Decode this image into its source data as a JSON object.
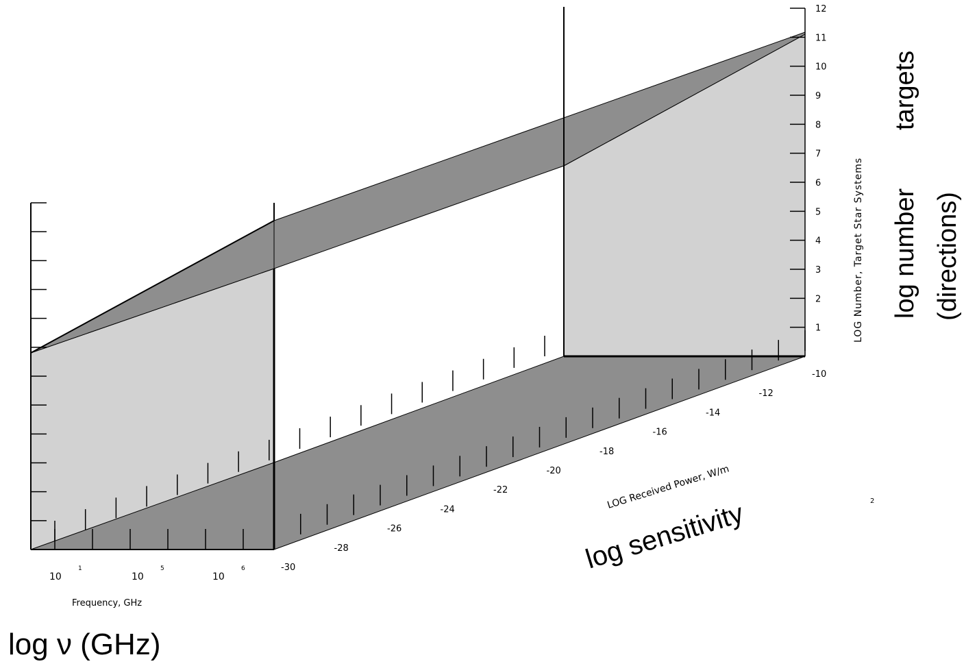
{
  "chart_data": {
    "type": "area",
    "projection": "3d-oblique",
    "title": "",
    "z_axis": {
      "label": "LOG Number, Target Star Systems",
      "ticks": [
        "1",
        "2",
        "3",
        "4",
        "5",
        "6",
        "7",
        "8",
        "9",
        "10",
        "11",
        "12"
      ],
      "range": [
        0,
        12
      ]
    },
    "power_axis": {
      "label": "LOG Received Power, W/m",
      "label_superscript": "2",
      "ticks": [
        "-30",
        "-28",
        "-26",
        "-24",
        "-22",
        "-20",
        "-18",
        "-16",
        "-14",
        "-12",
        "-10"
      ],
      "range": [
        -30,
        -10
      ]
    },
    "frequency_axis": {
      "label": "Frequency, GHz",
      "ticks": [
        {
          "base": "10",
          "exp": "1"
        },
        {
          "base": "10",
          "exp": "5"
        },
        {
          "base": "10",
          "exp": "6"
        }
      ]
    },
    "surface": {
      "description_points": [
        {
          "power": -30,
          "log_number_front": 0,
          "log_number_back": 0
        },
        {
          "power": -10,
          "log_number_front": 11.2,
          "log_number_back": 11.2
        }
      ]
    },
    "annotations": {
      "number_axis_line1": "targets",
      "number_axis_line2": "log number",
      "number_axis_line3": "(directions)",
      "power_axis": "log sensitivity",
      "frequency_axis": "log  ν  (GHz)"
    },
    "colors": {
      "dark_fill": "#8e8e8e",
      "light_fill": "#d2d2d2",
      "line": "#000000"
    }
  }
}
